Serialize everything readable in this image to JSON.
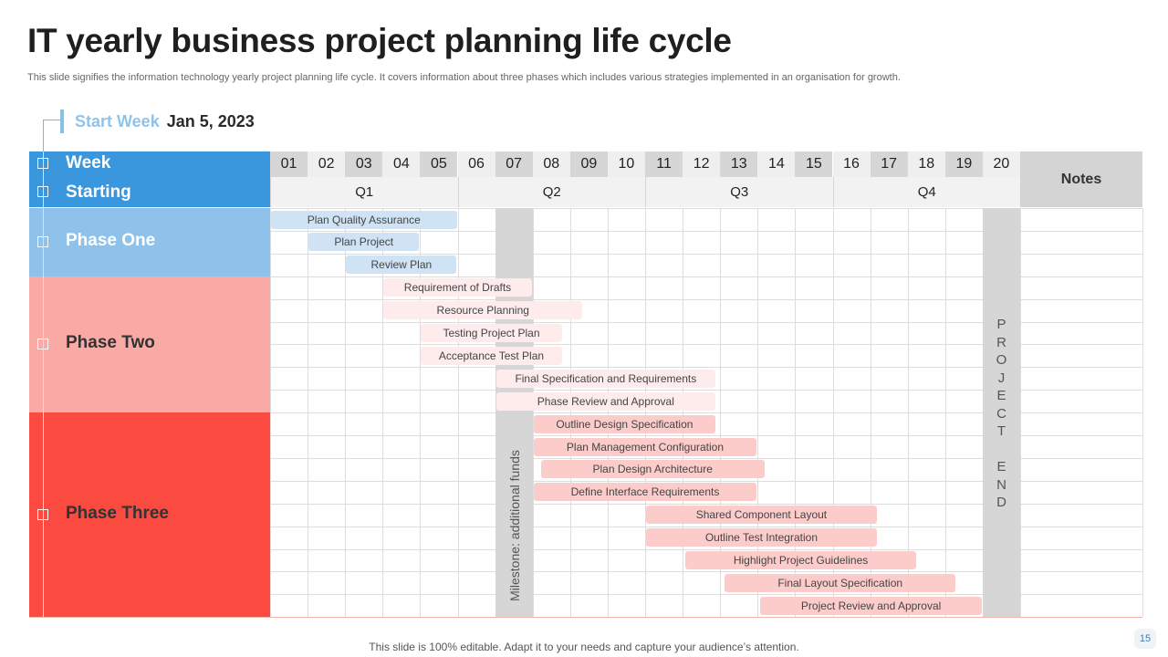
{
  "title": "IT yearly business  project planning life cycle",
  "subtitle": "This slide signifies the information technology yearly project planning life cycle.  It covers information about three phases which includes various strategies implemented in an organisation for growth.",
  "start_week": {
    "label": "Start Week",
    "date": "Jan 5, 2023"
  },
  "header": {
    "week_label": "Week",
    "starting_label": "Starting",
    "notes_label": "Notes"
  },
  "weeks": [
    "01",
    "02",
    "03",
    "04",
    "05",
    "06",
    "07",
    "08",
    "09",
    "10",
    "11",
    "12",
    "13",
    "14",
    "15",
    "16",
    "17",
    "18",
    "19",
    "20"
  ],
  "quarters": [
    {
      "label": "Q1",
      "start_week": 1,
      "end_week": 5
    },
    {
      "label": "Q2",
      "start_week": 6,
      "end_week": 10
    },
    {
      "label": "Q3",
      "start_week": 11,
      "end_week": 15
    },
    {
      "label": "Q4",
      "start_week": 16,
      "end_week": 20
    }
  ],
  "colors": {
    "week_header": "#3b97dd",
    "phase_one": "#8ec2ea",
    "phase_two": "#f9aaa4",
    "phase_three": "#fb4a3f",
    "task_blue": "#cfe3f5",
    "task_pink_light": "#fdeceb",
    "task_pink": "#fccccb"
  },
  "phases": [
    {
      "name": "Phase One",
      "first_row": 0,
      "row_count": 3,
      "color": "#8ec2ea",
      "text_color": "#ffffff"
    },
    {
      "name": "Phase Two",
      "first_row": 3,
      "row_count": 6,
      "color": "#f9aaa4",
      "text_color": "#333333"
    },
    {
      "name": "Phase Three",
      "first_row": 9,
      "row_count": 9,
      "color": "#fb4a3f",
      "text_color": "#333333"
    }
  ],
  "milestone": {
    "label": "Milestone:  additional funds",
    "week": 7
  },
  "project_end": {
    "letters": [
      "P",
      "R",
      "O",
      "J",
      "E",
      "C",
      "T",
      "",
      "E",
      "N",
      "D"
    ],
    "week": 20
  },
  "tasks": [
    {
      "label": "Plan Quality Assurance",
      "row": 0,
      "start": 0,
      "end": 5,
      "style": "blue"
    },
    {
      "label": "Plan Project",
      "row": 1,
      "start": 1,
      "end": 4,
      "style": "blue"
    },
    {
      "label": "Review Plan",
      "row": 2,
      "start": 2,
      "end": 5,
      "style": "blue"
    },
    {
      "label": "Requirement of Drafts",
      "row": 3,
      "start": 3,
      "end": 7,
      "style": "pink-light"
    },
    {
      "label": "Resource Planning",
      "row": 4,
      "start": 3,
      "end": 8.35,
      "style": "pink-light"
    },
    {
      "label": "Testing Project Plan",
      "row": 5,
      "start": 4,
      "end": 7.8,
      "style": "pink-light"
    },
    {
      "label": "Acceptance Test Plan",
      "row": 6,
      "start": 4,
      "end": 7.8,
      "style": "pink-light"
    },
    {
      "label": "Final Specification and Requirements",
      "row": 7,
      "start": 6,
      "end": 11.9,
      "style": "pink-light"
    },
    {
      "label": "Phase Review and Approval",
      "row": 8,
      "start": 6,
      "end": 11.9,
      "style": "pink-light"
    },
    {
      "label": "Outline Design Specification",
      "row": 9,
      "start": 7,
      "end": 11.9,
      "style": "pink"
    },
    {
      "label": "Plan Management Configuration",
      "row": 10,
      "start": 7,
      "end": 13,
      "style": "pink"
    },
    {
      "label": "Plan Design Architecture",
      "row": 11,
      "start": 7.2,
      "end": 13.2,
      "style": "pink"
    },
    {
      "label": "Define Interface Requirements",
      "row": 12,
      "start": 7,
      "end": 13,
      "style": "pink"
    },
    {
      "label": "Shared Component Layout",
      "row": 13,
      "start": 10,
      "end": 16.2,
      "style": "pink"
    },
    {
      "label": "Outline Test Integration",
      "row": 14,
      "start": 10,
      "end": 16.2,
      "style": "pink"
    },
    {
      "label": "Highlight Project Guidelines",
      "row": 15,
      "start": 11.05,
      "end": 17.25,
      "style": "pink"
    },
    {
      "label": "Final Layout Specification",
      "row": 16,
      "start": 12.1,
      "end": 18.3,
      "style": "pink"
    },
    {
      "label": "Project Review and Approval",
      "row": 17,
      "start": 13.05,
      "end": 19,
      "style": "pink"
    }
  ],
  "footer": "This slide is 100% editable. Adapt it to your needs and capture your audience’s attention.",
  "page_number": "15"
}
